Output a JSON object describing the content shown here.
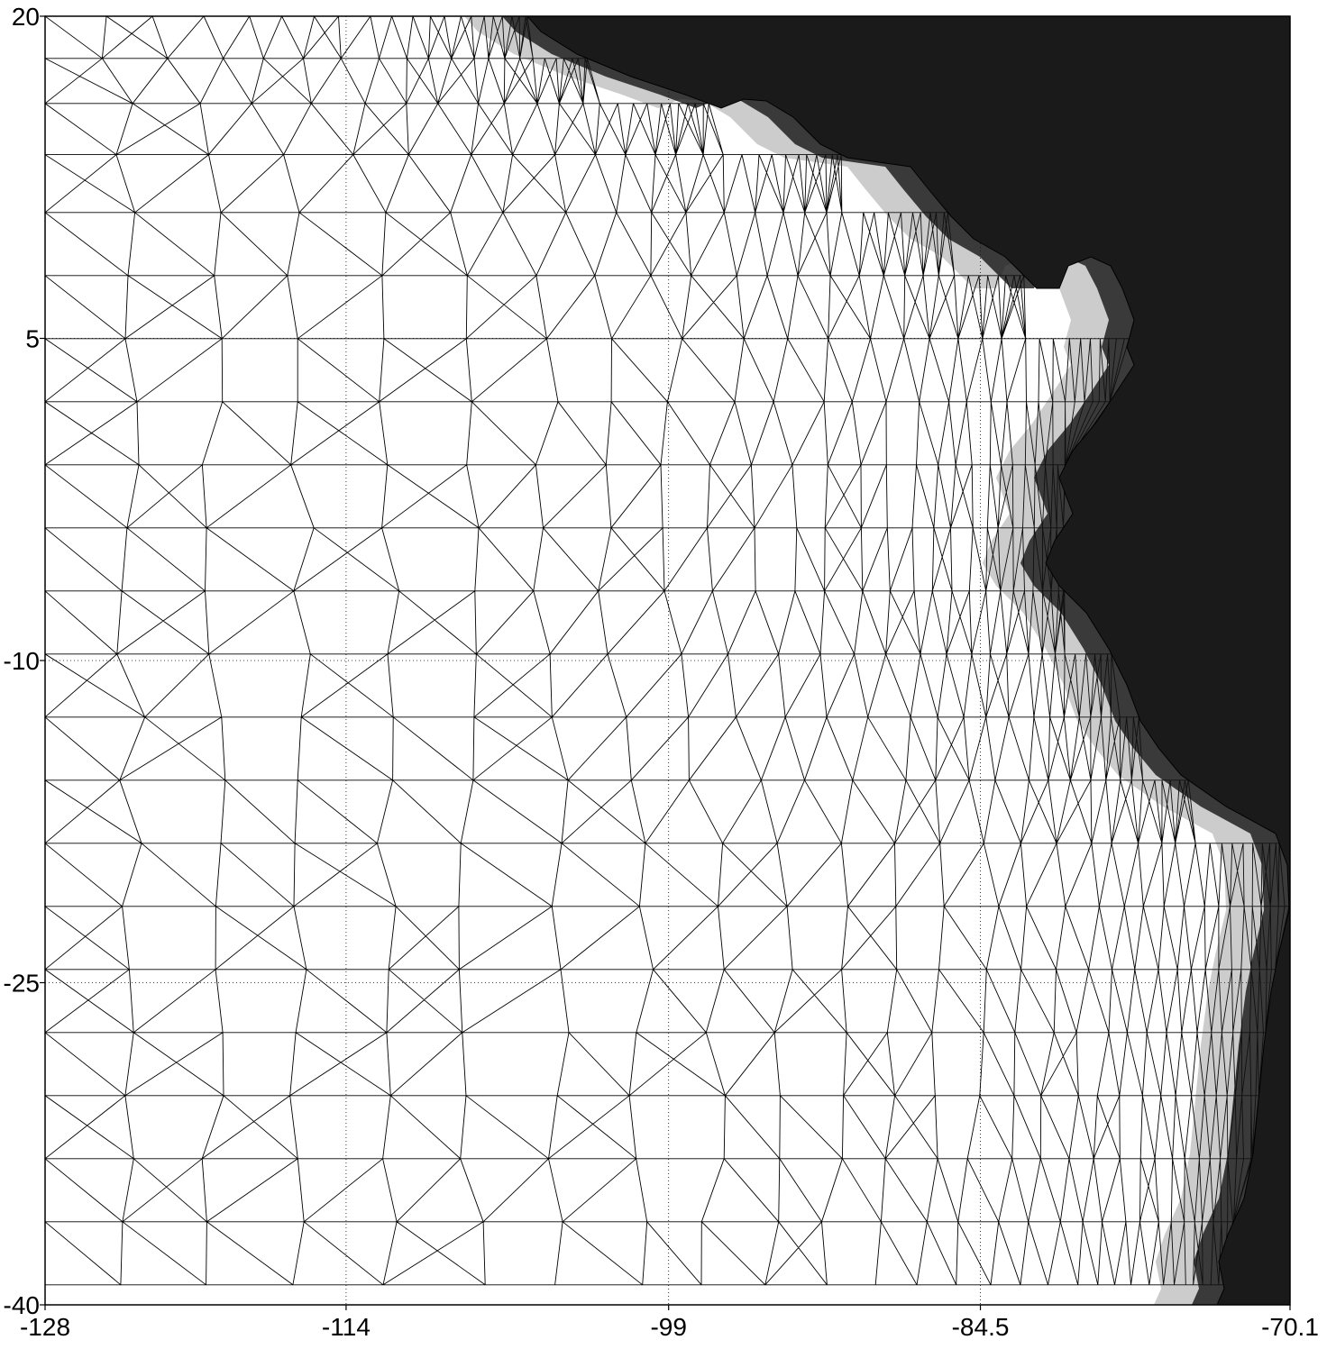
{
  "figure": {
    "kind": "unstructured triangular ocean mesh",
    "mesh_color": "#000000",
    "background_color": "#ffffff"
  },
  "axes": {
    "x_range": [
      -128,
      -70.1
    ],
    "y_range": [
      -40,
      20
    ],
    "x_ticks": [
      {
        "value": -128,
        "label": "-128"
      },
      {
        "value": -114,
        "label": "-114"
      },
      {
        "value": -99,
        "label": "-99"
      },
      {
        "value": -84.5,
        "label": "-84.5"
      },
      {
        "value": -70.1,
        "label": "-70.1"
      }
    ],
    "y_ticks": [
      {
        "value": 20,
        "label": "20"
      },
      {
        "value": 5,
        "label": "5"
      },
      {
        "value": -10,
        "label": "-10"
      },
      {
        "value": -25,
        "label": "-25"
      },
      {
        "value": -40,
        "label": "-40"
      }
    ],
    "grid": true
  }
}
